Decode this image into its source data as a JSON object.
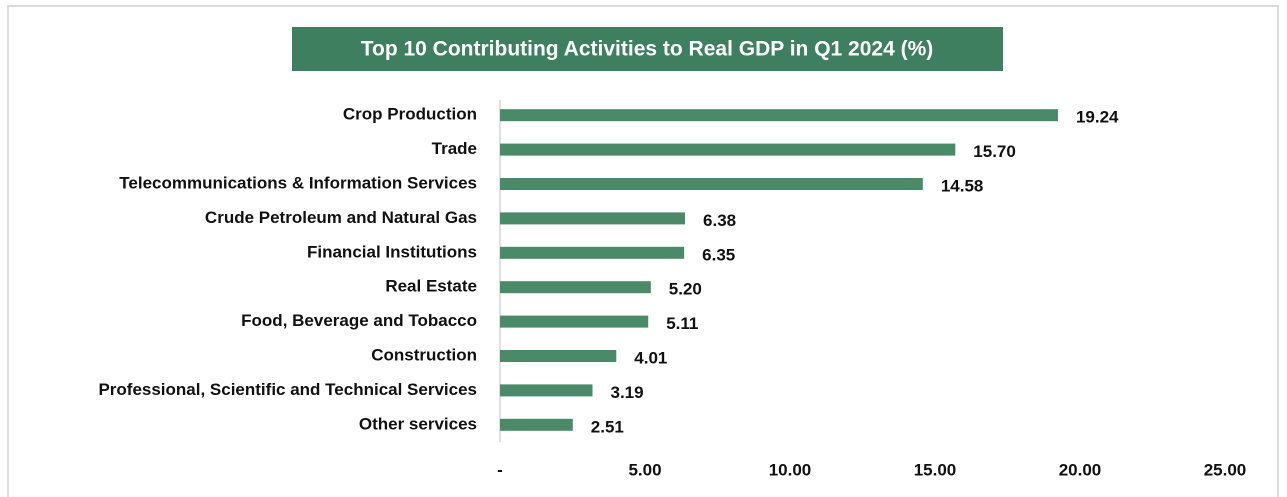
{
  "chart_data": {
    "type": "bar",
    "orientation": "horizontal",
    "title": "Top 10 Contributing Activities to Real GDP in Q1 2024 (%)",
    "categories": [
      "Crop Production",
      "Trade",
      "Telecommunications & Information Services",
      "Crude Petroleum and Natural Gas",
      "Financial Institutions",
      "Real Estate",
      "Food, Beverage and Tobacco",
      "Construction",
      "Professional, Scientific and Technical Services",
      "Other services"
    ],
    "values": [
      19.24,
      15.7,
      14.58,
      6.38,
      6.35,
      5.2,
      5.11,
      4.01,
      3.19,
      2.51
    ],
    "value_labels": [
      "19.24",
      "15.70",
      "14.58",
      "6.38",
      "6.35",
      "5.20",
      "5.11",
      "4.01",
      "3.19",
      "2.51"
    ],
    "color": "#4a8a69",
    "xlim": [
      0,
      25
    ],
    "xticks": [
      {
        "value": 0,
        "label": "-"
      },
      {
        "value": 5,
        "label": "5.00"
      },
      {
        "value": 10,
        "label": "10.00"
      },
      {
        "value": 15,
        "label": "15.00"
      },
      {
        "value": 20,
        "label": "20.00"
      },
      {
        "value": 25,
        "label": "25.00"
      }
    ],
    "grid": false
  }
}
